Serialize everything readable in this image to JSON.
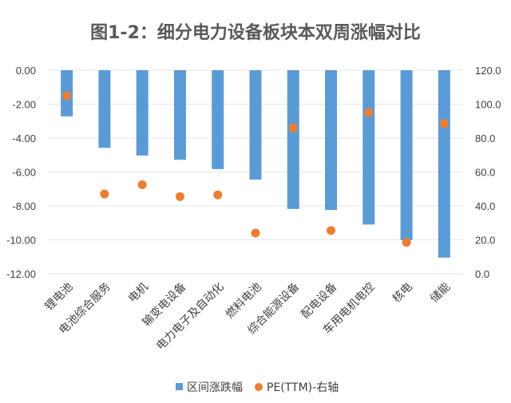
{
  "chart_data": {
    "type": "bar",
    "title": "图1-2：细分电力设备板块本双周涨幅对比",
    "categories": [
      "锂电池",
      "电池综合服务",
      "电机",
      "输变电设备",
      "电力电子及自动化",
      "燃料电池",
      "综合能源设备",
      "配电设备",
      "车用电机电控",
      "核电",
      "储能"
    ],
    "series": [
      {
        "name": "区间涨跌幅",
        "type": "bar",
        "axis": "left",
        "color": "#5b9bd5",
        "values": [
          -2.72,
          -4.58,
          -5.03,
          -5.28,
          -5.83,
          -6.45,
          -8.18,
          -8.24,
          -9.1,
          -10.02,
          -11.05
        ]
      },
      {
        "name": "PE(TTM)-右轴",
        "type": "scatter",
        "axis": "right",
        "color": "#ed7d31",
        "values": [
          105.0,
          47.0,
          52.5,
          45.5,
          46.5,
          24.0,
          86.0,
          25.5,
          95.0,
          18.5,
          88.5
        ]
      }
    ],
    "left_axis": {
      "ylim": [
        -12,
        0
      ],
      "ticks": [
        "0.00",
        "-2.00",
        "-4.00",
        "-6.00",
        "-8.00",
        "-10.00",
        "-12.00"
      ],
      "tick_values": [
        0,
        -2,
        -4,
        -6,
        -8,
        -10,
        -12
      ]
    },
    "right_axis": {
      "ylim": [
        0,
        120
      ],
      "ticks": [
        "120.0",
        "100.0",
        "80.0",
        "60.0",
        "40.0",
        "20.0",
        "0.0"
      ],
      "tick_values": [
        120,
        100,
        80,
        60,
        40,
        20,
        0
      ]
    },
    "grid": true,
    "legend_position": "bottom"
  }
}
